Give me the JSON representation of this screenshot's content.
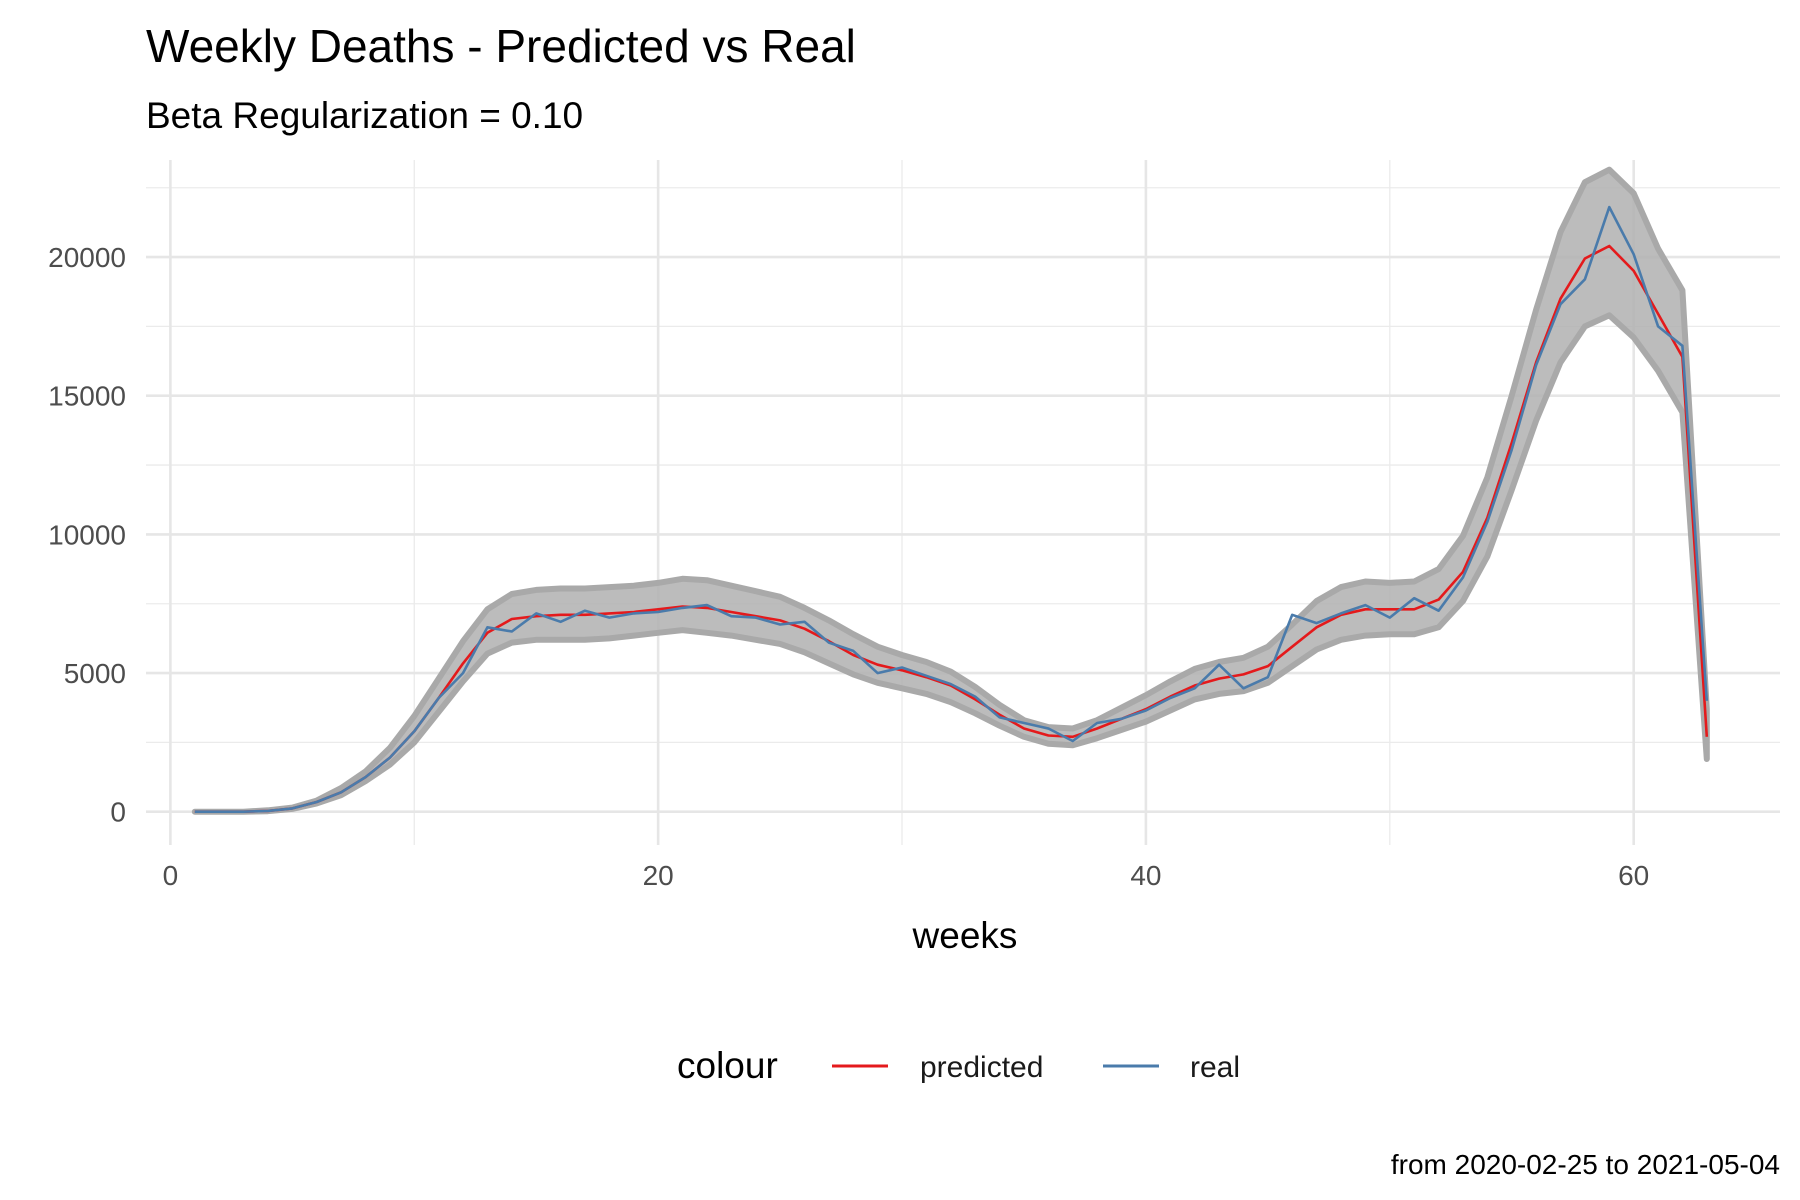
{
  "chart_data": {
    "type": "line",
    "title": "Weekly Deaths - Predicted vs Real",
    "subtitle": "Beta Regularization = 0.10",
    "xlabel": "weeks",
    "ylabel": "",
    "caption": "from 2020-02-25 to 2021-05-04",
    "xlim": [
      -1,
      66
    ],
    "ylim": [
      -1200,
      23500
    ],
    "x_ticks": [
      0,
      20,
      40,
      60
    ],
    "y_ticks": [
      0,
      5000,
      10000,
      15000,
      20000
    ],
    "grid": true,
    "legend": {
      "title": "colour",
      "position": "bottom"
    },
    "colors": {
      "predicted": "#e41a1c",
      "real": "#4a7bab",
      "band": "#b0b0b0"
    },
    "x": [
      1,
      2,
      3,
      4,
      5,
      6,
      7,
      8,
      9,
      10,
      11,
      12,
      13,
      14,
      15,
      16,
      17,
      18,
      19,
      20,
      21,
      22,
      23,
      24,
      25,
      26,
      27,
      28,
      29,
      30,
      31,
      32,
      33,
      34,
      35,
      36,
      37,
      38,
      39,
      40,
      41,
      42,
      43,
      44,
      45,
      46,
      47,
      48,
      49,
      50,
      51,
      52,
      53,
      54,
      55,
      56,
      57,
      58,
      59,
      60,
      61,
      62,
      63
    ],
    "band": {
      "lower": [
        0,
        0,
        0,
        20,
        100,
        300,
        600,
        1100,
        1700,
        2500,
        3600,
        4700,
        5700,
        6100,
        6200,
        6200,
        6200,
        6250,
        6350,
        6450,
        6550,
        6450,
        6350,
        6200,
        6050,
        5750,
        5350,
        4950,
        4650,
        4450,
        4250,
        3950,
        3550,
        3100,
        2700,
        2450,
        2400,
        2650,
        2950,
        3250,
        3650,
        4050,
        4250,
        4350,
        4650,
        5250,
        5850,
        6200,
        6350,
        6400,
        6400,
        6650,
        7600,
        9200,
        11600,
        14100,
        16200,
        17500,
        17900,
        17100,
        15900,
        14400,
        1900
      ],
      "upper": [
        0,
        0,
        0,
        50,
        150,
        400,
        850,
        1450,
        2300,
        3450,
        4800,
        6150,
        7300,
        7850,
        8000,
        8050,
        8050,
        8100,
        8150,
        8250,
        8400,
        8350,
        8150,
        7950,
        7750,
        7350,
        6900,
        6400,
        5950,
        5650,
        5400,
        5050,
        4500,
        3850,
        3300,
        3050,
        3000,
        3300,
        3750,
        4200,
        4700,
        5150,
        5400,
        5550,
        5950,
        6750,
        7600,
        8100,
        8300,
        8250,
        8300,
        8750,
        9950,
        12050,
        15000,
        18100,
        20900,
        22700,
        23150,
        22300,
        20300,
        18800,
        3700
      ]
    },
    "series": [
      {
        "name": "predicted",
        "values": [
          0,
          0,
          0,
          30,
          120,
          350,
          700,
          1250,
          1950,
          2900,
          4100,
          5350,
          6450,
          6950,
          7050,
          7100,
          7100,
          7150,
          7200,
          7300,
          7400,
          7350,
          7200,
          7050,
          6900,
          6600,
          6150,
          5650,
          5300,
          5100,
          4850,
          4550,
          4050,
          3500,
          3000,
          2750,
          2700,
          3000,
          3350,
          3700,
          4150,
          4550,
          4800,
          4950,
          5250,
          5950,
          6650,
          7100,
          7300,
          7300,
          7300,
          7650,
          8650,
          10600,
          13300,
          16200,
          18500,
          19950,
          20400,
          19500,
          17950,
          16400,
          2700
        ]
      },
      {
        "name": "real",
        "values": [
          0,
          0,
          0,
          30,
          120,
          350,
          700,
          1250,
          1950,
          2900,
          4100,
          5000,
          6650,
          6500,
          7150,
          6850,
          7250,
          7000,
          7150,
          7200,
          7350,
          7450,
          7050,
          7000,
          6750,
          6850,
          6100,
          5800,
          5000,
          5200,
          4900,
          4600,
          4150,
          3400,
          3200,
          3000,
          2550,
          3200,
          3350,
          3650,
          4100,
          4450,
          5300,
          4450,
          4850,
          7100,
          6800,
          7150,
          7450,
          7000,
          7700,
          7250,
          8450,
          10450,
          13050,
          16100,
          18300,
          19200,
          21800,
          20100,
          17500,
          16800,
          4000
        ]
      }
    ]
  }
}
